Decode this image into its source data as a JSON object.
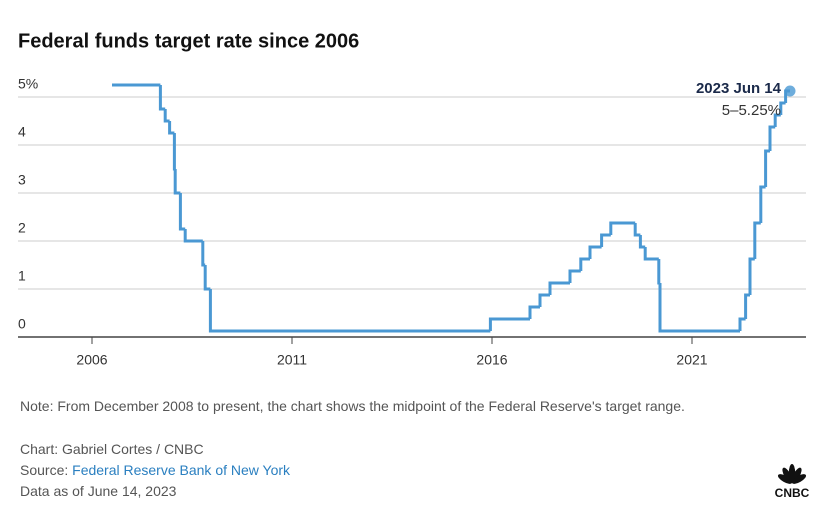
{
  "chart_data": {
    "type": "step",
    "title": "Federal funds target rate since 2006",
    "x": [
      2006.5,
      2007.71,
      2007.83,
      2007.94,
      2008.06,
      2008.08,
      2008.21,
      2008.33,
      2008.77,
      2008.83,
      2008.96,
      2015.96,
      2016.95,
      2017.2,
      2017.45,
      2017.95,
      2018.22,
      2018.45,
      2018.74,
      2018.97,
      2019.58,
      2019.71,
      2019.83,
      2020.17,
      2020.2,
      2022.2,
      2022.34,
      2022.45,
      2022.57,
      2022.72,
      2022.84,
      2022.95,
      2023.08,
      2023.22,
      2023.34,
      2023.45
    ],
    "values": [
      5.25,
      4.75,
      4.5,
      4.25,
      3.5,
      3.0,
      2.25,
      2.0,
      1.5,
      1.0,
      0.125,
      0.375,
      0.625,
      0.875,
      1.125,
      1.375,
      1.625,
      1.875,
      2.125,
      2.375,
      2.125,
      1.875,
      1.625,
      1.125,
      0.125,
      0.375,
      0.875,
      1.625,
      2.375,
      3.125,
      3.875,
      4.375,
      4.625,
      4.875,
      5.125,
      5.125
    ],
    "color": "#4a98d3",
    "xlim": [
      2004.15,
      2023.85
    ],
    "xticks": [
      2006,
      2011,
      2016,
      2021
    ],
    "ylim": [
      0,
      5.5
    ],
    "yticks": [
      0,
      1,
      2,
      3,
      4,
      {
        "value": 5,
        "label": "5%"
      }
    ],
    "grid": true,
    "annotation": {
      "date": "2023 Jun 14",
      "label": "5–5.25%"
    },
    "note": "Note: From December 2008 to present, the chart shows the midpoint of the Federal Reserve's target range.",
    "credit": "Chart: Gabriel Cortes / CNBC",
    "source_label": "Source:",
    "source_link": "Federal Reserve Bank of New York",
    "data_as_of": "Data as of June 14, 2023",
    "logo": "CNBC"
  }
}
